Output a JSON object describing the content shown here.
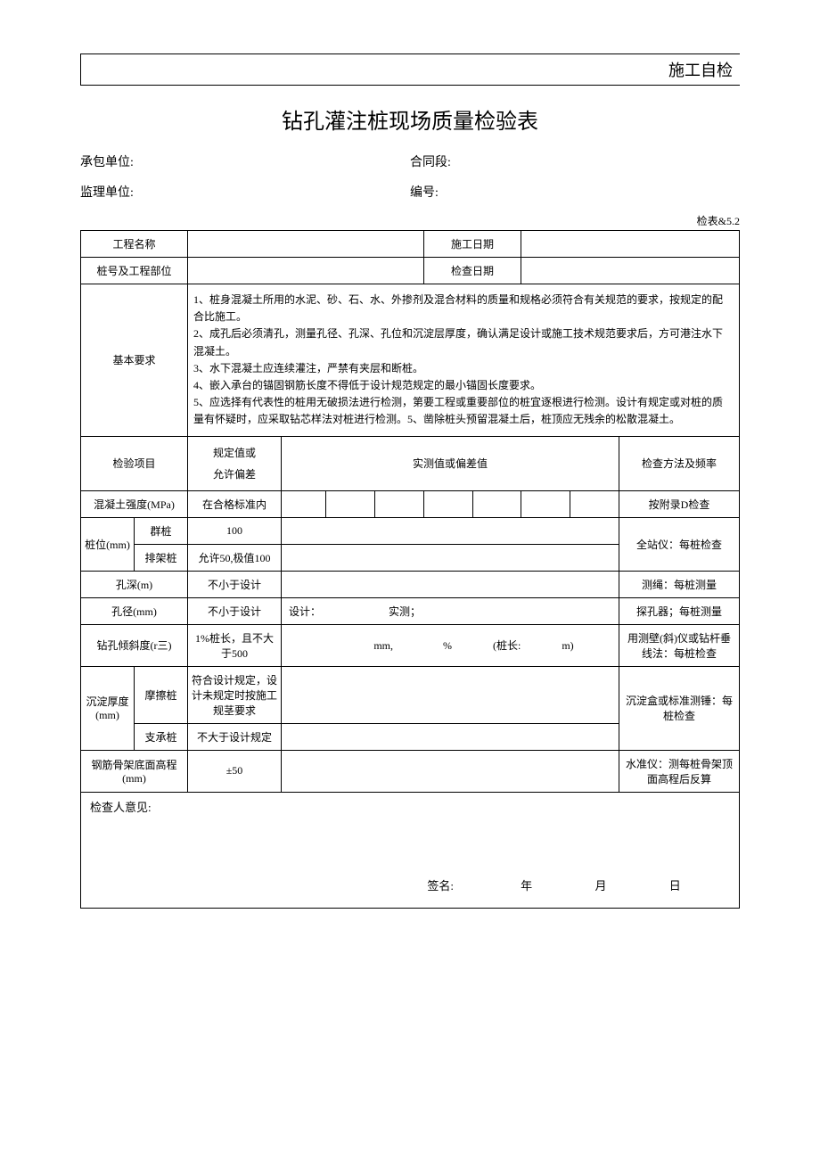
{
  "header": {
    "stamp": "施工自检"
  },
  "title": "钻孔灌注桩现场质量检验表",
  "meta": {
    "contractor_label": "承包单位:",
    "contract_label": "合同段:",
    "supervisor_label": "监理单位:",
    "number_label": "编号:",
    "table_no": "检表&5.2"
  },
  "rows": {
    "project_name": "工程名称",
    "construction_date": "施工日期",
    "pile_no_part": "桩号及工程部位",
    "check_date": "检查日期",
    "basic_req_label": "基本要求",
    "basic_req_text": "1、桩身混凝土所用的水泥、砂、石、水、外掺剂及混合材料的质量和规格必须符合有关规范的要求，按规定的配合比施工。\n2、成孔后必须清孔，测量孔径、孔深、孔位和沉淀层厚度，确认满足设计或施工技术规范要求后，方可港注水下混凝土。\n3、水下混凝土应连续灌注，严禁有夹层和断桩。\n4、嵌入承台的锚固钢筋长度不得低于设计规范规定的最小锚固长度要求。\n5、应选择有代表性的桩用无破损法进行检测，第要工程或重要部位的桩宜逐根进行检测。设计有规定或对桩的质量有怀疑时，应采取钻芯样法对桩进行检测。5、凿除桩头预留混凝土后，桩顶应无残余的松散混凝土。"
  },
  "thead": {
    "item": "检验项目",
    "spec": "规定值或\n允许偏差",
    "measured": "实测值或偏差值",
    "method": "检查方法及频率"
  },
  "inspect": {
    "concrete_strength": {
      "label": "混凝土强度(MPa)",
      "spec": "在合格标准内",
      "method": "按附录D检查"
    },
    "pile_pos": {
      "label": "桩位(mm)",
      "group_pile": "群桩",
      "group_spec": "100",
      "row_pile": "排架桩",
      "row_spec": "允许50,极值100",
      "method": "全站仪：每桩检查"
    },
    "hole_depth": {
      "label": "孔深(m)",
      "spec": "不小于设计",
      "method": "测绳：每桩测量"
    },
    "hole_dia": {
      "label": "孔径(mm)",
      "spec": "不小于设计",
      "design_label": "设计：",
      "measured_label": "实测；",
      "method": "探孔器；每桩测量"
    },
    "incline": {
      "label": "钻孔倾斜度(r三)",
      "spec": "1%桩长，且不大于500",
      "mm": "mm,",
      "pct": "%",
      "pile_len_open": "(桩长:",
      "pile_len_close": "m)",
      "method": "用测壁(斜)仪或钻杆垂线法：每桩检查"
    },
    "sediment": {
      "label": "沉淀厚度\n(mm)",
      "friction": "摩擦桩",
      "friction_spec": "符合设计规定，设计未规定时按施工规茎要求",
      "end": "支承桩",
      "end_spec": "不大于设计规定",
      "method": "沉淀盒或标准测锤：每桩检查"
    },
    "rebar_elev": {
      "label": "钢筋骨架底面高程\n(mm)",
      "spec": "±50",
      "method": "水准仪：测每桩骨架顶面高程后反算"
    }
  },
  "inspector": {
    "title": "检查人意见:",
    "sign": "签名:",
    "year": "年",
    "month": "月",
    "day": "日"
  }
}
